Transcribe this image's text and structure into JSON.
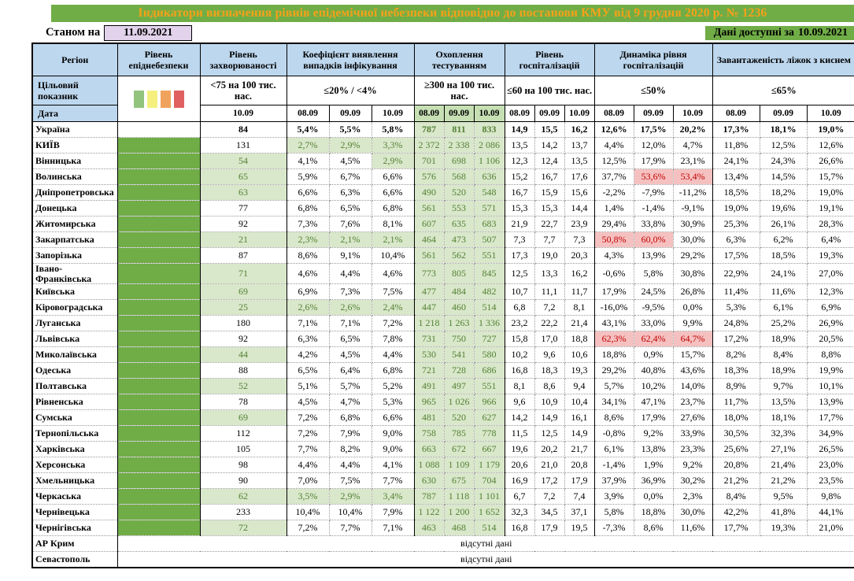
{
  "title": "Індикатори визначення рівнів епідемічної небезпеки відповідно до постанови КМУ від 9 грудня 2020 р. № 1236",
  "meta": {
    "as_of_label": "Станом на",
    "as_of_date": "11.09.2021",
    "available_label": "Дані доступні за",
    "available_date": "10.09.2021"
  },
  "colors": {
    "title_text_orange": "#f6a118",
    "highlight_green": "#70ad47",
    "header_blue": "#bdd7ee",
    "danger_column_green": "#70ad47",
    "light_green_cell": "#d9e7ca",
    "green_text": "#538135",
    "red_cell": "#f5c1c0",
    "red_text": "#c00000",
    "date_box_lavender": "#e2d2eb",
    "legend": [
      "#93c47d",
      "#f5f07e",
      "#f0a35c",
      "#e06061"
    ]
  },
  "table": {
    "region_header": "Регіон",
    "target_label": "Цільовий показник",
    "date_label": "Дата",
    "groups": [
      {
        "label": "Рівень епіднебезпеки"
      },
      {
        "label": "Рівень захворюваності",
        "target": "<75 на 100 тис. нас.",
        "dates": [
          "10.09"
        ]
      },
      {
        "label": "Коефіцієнт виявлення випадків інфікування",
        "target": "≤20% / <4%",
        "dates": [
          "08.09",
          "09.09",
          "10.09"
        ]
      },
      {
        "label": "Охоплення тестуванням",
        "target": "≥300 на 100 тис. нас.",
        "dates": [
          "08.09",
          "09.09",
          "10.09"
        ]
      },
      {
        "label": "Рівень госпіталізацій",
        "target": "≤60 на 100 тис. нас.",
        "dates": [
          "08.09",
          "09.09",
          "10.09"
        ]
      },
      {
        "label": "Динаміка рівня госпіталізацій",
        "target": "≤50%",
        "dates": [
          "08.09",
          "09.09",
          "10.09"
        ]
      },
      {
        "label": "Завантаженість ліжок з киснем",
        "target": "≤65%",
        "dates": [
          "08.09",
          "09.09",
          "10.09"
        ]
      }
    ],
    "no_data_text": "відсутні дані",
    "no_data_rows": [
      "АР Крим",
      "Севастополь"
    ],
    "rows": [
      {
        "name": "Україна",
        "bold": true,
        "danger": false,
        "inc": "84",
        "inc_g": false,
        "coef": [
          "5,4%",
          "5,5%",
          "5,8%"
        ],
        "test": [
          "787",
          "811",
          "833"
        ],
        "hosp": [
          "14,9",
          "15,5",
          "16,2"
        ],
        "dyn": [
          "12,6%",
          "17,5%",
          "20,2%"
        ],
        "beds": [
          "17,3%",
          "18,1%",
          "19,0%"
        ]
      },
      {
        "name": "КИЇВ",
        "danger": true,
        "inc": "131",
        "inc_g": false,
        "coef": [
          "2,7%",
          "2,9%",
          "3,3%"
        ],
        "coef_g": [
          true,
          true,
          true
        ],
        "test": [
          "2 372",
          "2 338",
          "2 086"
        ],
        "hosp": [
          "13,5",
          "14,2",
          "13,7"
        ],
        "dyn": [
          "4,4%",
          "12,0%",
          "4,7%"
        ],
        "beds": [
          "11,8%",
          "12,5%",
          "12,6%"
        ]
      },
      {
        "name": "Вінницька",
        "danger": true,
        "inc": "54",
        "inc_g": true,
        "coef": [
          "4,1%",
          "4,5%",
          "2,9%"
        ],
        "coef_g": [
          false,
          false,
          true
        ],
        "test": [
          "701",
          "698",
          "1 106"
        ],
        "hosp": [
          "12,3",
          "12,4",
          "13,5"
        ],
        "dyn": [
          "12,5%",
          "17,9%",
          "23,1%"
        ],
        "beds": [
          "24,1%",
          "24,3%",
          "26,6%"
        ]
      },
      {
        "name": "Волинська",
        "danger": true,
        "inc": "65",
        "inc_g": true,
        "coef": [
          "5,9%",
          "6,7%",
          "6,6%"
        ],
        "test": [
          "576",
          "568",
          "636"
        ],
        "hosp": [
          "15,2",
          "16,7",
          "17,6"
        ],
        "dyn": [
          "37,7%",
          "53,6%",
          "53,4%"
        ],
        "dyn_r": [
          false,
          true,
          true
        ],
        "beds": [
          "13,4%",
          "14,5%",
          "15,7%"
        ]
      },
      {
        "name": "Дніпропетровська",
        "danger": true,
        "inc": "63",
        "inc_g": true,
        "coef": [
          "6,6%",
          "6,3%",
          "6,6%"
        ],
        "test": [
          "490",
          "520",
          "548"
        ],
        "hosp": [
          "16,7",
          "15,9",
          "15,6"
        ],
        "dyn": [
          "-2,2%",
          "-7,9%",
          "-11,2%"
        ],
        "beds": [
          "18,5%",
          "18,2%",
          "19,0%"
        ]
      },
      {
        "name": "Донецька",
        "danger": true,
        "inc": "77",
        "inc_g": false,
        "coef": [
          "6,8%",
          "6,5%",
          "6,8%"
        ],
        "test": [
          "561",
          "553",
          "571"
        ],
        "hosp": [
          "15,3",
          "15,3",
          "14,4"
        ],
        "dyn": [
          "1,4%",
          "-1,4%",
          "-9,1%"
        ],
        "beds": [
          "19,0%",
          "19,6%",
          "19,1%"
        ]
      },
      {
        "name": "Житомирська",
        "danger": true,
        "inc": "92",
        "inc_g": false,
        "coef": [
          "7,3%",
          "7,6%",
          "8,1%"
        ],
        "test": [
          "607",
          "635",
          "683"
        ],
        "hosp": [
          "21,9",
          "22,7",
          "23,9"
        ],
        "dyn": [
          "29,4%",
          "33,8%",
          "30,9%"
        ],
        "beds": [
          "25,3%",
          "26,1%",
          "28,3%"
        ]
      },
      {
        "name": "Закарпатська",
        "danger": true,
        "inc": "21",
        "inc_g": true,
        "coef": [
          "2,3%",
          "2,1%",
          "2,1%"
        ],
        "coef_g": [
          true,
          true,
          true
        ],
        "test": [
          "464",
          "473",
          "507"
        ],
        "hosp": [
          "7,3",
          "7,7",
          "7,3"
        ],
        "dyn": [
          "50,8%",
          "60,0%",
          "30,0%"
        ],
        "dyn_r": [
          true,
          true,
          false
        ],
        "beds": [
          "6,3%",
          "6,2%",
          "6,4%"
        ]
      },
      {
        "name": "Запорізька",
        "danger": true,
        "inc": "87",
        "inc_g": false,
        "coef": [
          "8,6%",
          "9,1%",
          "10,4%"
        ],
        "test": [
          "561",
          "562",
          "551"
        ],
        "hosp": [
          "17,3",
          "19,0",
          "20,3"
        ],
        "dyn": [
          "4,3%",
          "13,9%",
          "29,2%"
        ],
        "beds": [
          "17,5%",
          "18,5%",
          "19,3%"
        ]
      },
      {
        "name": "Івано-Франківська",
        "danger": true,
        "inc": "71",
        "inc_g": true,
        "coef": [
          "4,6%",
          "4,4%",
          "4,6%"
        ],
        "test": [
          "773",
          "805",
          "845"
        ],
        "hosp": [
          "12,5",
          "13,3",
          "16,2"
        ],
        "dyn": [
          "-0,6%",
          "5,8%",
          "30,8%"
        ],
        "beds": [
          "22,9%",
          "24,1%",
          "27,0%"
        ]
      },
      {
        "name": "Київська",
        "danger": true,
        "inc": "69",
        "inc_g": true,
        "coef": [
          "6,9%",
          "7,3%",
          "7,5%"
        ],
        "test": [
          "477",
          "484",
          "482"
        ],
        "hosp": [
          "10,7",
          "11,1",
          "11,7"
        ],
        "dyn": [
          "17,9%",
          "24,5%",
          "26,8%"
        ],
        "beds": [
          "11,4%",
          "11,6%",
          "12,3%"
        ]
      },
      {
        "name": "Кіровоградська",
        "danger": true,
        "inc": "25",
        "inc_g": true,
        "coef": [
          "2,6%",
          "2,6%",
          "2,4%"
        ],
        "coef_g": [
          true,
          true,
          true
        ],
        "test": [
          "447",
          "460",
          "514"
        ],
        "hosp": [
          "6,8",
          "7,2",
          "8,1"
        ],
        "dyn": [
          "-16,0%",
          "-9,5%",
          "0,0%"
        ],
        "beds": [
          "5,3%",
          "6,1%",
          "6,9%"
        ]
      },
      {
        "name": "Луганська",
        "danger": true,
        "inc": "180",
        "inc_g": false,
        "coef": [
          "7,1%",
          "7,1%",
          "7,2%"
        ],
        "test": [
          "1 218",
          "1 263",
          "1 336"
        ],
        "hosp": [
          "23,2",
          "22,2",
          "21,4"
        ],
        "dyn": [
          "43,1%",
          "33,0%",
          "9,9%"
        ],
        "beds": [
          "24,8%",
          "25,2%",
          "26,9%"
        ]
      },
      {
        "name": "Львівська",
        "danger": true,
        "inc": "92",
        "inc_g": false,
        "coef": [
          "6,3%",
          "6,5%",
          "7,8%"
        ],
        "test": [
          "731",
          "750",
          "727"
        ],
        "hosp": [
          "15,8",
          "17,0",
          "18,8"
        ],
        "dyn": [
          "62,3%",
          "62,4%",
          "64,7%"
        ],
        "dyn_r": [
          true,
          true,
          true
        ],
        "beds": [
          "17,2%",
          "18,9%",
          "20,5%"
        ]
      },
      {
        "name": "Миколаївська",
        "danger": true,
        "inc": "44",
        "inc_g": true,
        "coef": [
          "4,2%",
          "4,5%",
          "4,4%"
        ],
        "test": [
          "530",
          "541",
          "580"
        ],
        "hosp": [
          "10,2",
          "9,6",
          "10,6"
        ],
        "dyn": [
          "18,8%",
          "0,9%",
          "15,7%"
        ],
        "beds": [
          "8,2%",
          "8,4%",
          "8,8%"
        ]
      },
      {
        "name": "Одеська",
        "danger": true,
        "inc": "88",
        "inc_g": false,
        "coef": [
          "6,5%",
          "6,4%",
          "6,8%"
        ],
        "test": [
          "721",
          "728",
          "686"
        ],
        "hosp": [
          "16,8",
          "18,3",
          "19,3"
        ],
        "dyn": [
          "29,2%",
          "40,8%",
          "43,6%"
        ],
        "beds": [
          "18,3%",
          "18,9%",
          "19,9%"
        ]
      },
      {
        "name": "Полтавська",
        "danger": true,
        "inc": "52",
        "inc_g": true,
        "coef": [
          "5,1%",
          "5,7%",
          "5,2%"
        ],
        "test": [
          "491",
          "497",
          "551"
        ],
        "hosp": [
          "8,1",
          "8,6",
          "9,4"
        ],
        "dyn": [
          "5,7%",
          "10,2%",
          "14,0%"
        ],
        "beds": [
          "8,9%",
          "9,7%",
          "10,1%"
        ]
      },
      {
        "name": "Рівненська",
        "danger": true,
        "inc": "78",
        "inc_g": false,
        "coef": [
          "4,5%",
          "4,7%",
          "5,3%"
        ],
        "test": [
          "965",
          "1 026",
          "966"
        ],
        "hosp": [
          "9,6",
          "10,9",
          "10,4"
        ],
        "dyn": [
          "34,1%",
          "47,1%",
          "23,7%"
        ],
        "beds": [
          "11,7%",
          "13,5%",
          "13,9%"
        ]
      },
      {
        "name": "Сумська",
        "danger": true,
        "inc": "69",
        "inc_g": true,
        "coef": [
          "7,2%",
          "6,8%",
          "6,6%"
        ],
        "test": [
          "481",
          "520",
          "627"
        ],
        "hosp": [
          "14,2",
          "14,9",
          "16,1"
        ],
        "dyn": [
          "8,6%",
          "17,9%",
          "27,6%"
        ],
        "beds": [
          "18,0%",
          "18,1%",
          "17,7%"
        ]
      },
      {
        "name": "Тернопільська",
        "danger": true,
        "inc": "112",
        "inc_g": false,
        "coef": [
          "7,2%",
          "7,9%",
          "9,0%"
        ],
        "test": [
          "758",
          "785",
          "778"
        ],
        "hosp": [
          "11,5",
          "12,5",
          "14,9"
        ],
        "dyn": [
          "-0,8%",
          "9,2%",
          "33,9%"
        ],
        "beds": [
          "30,5%",
          "32,3%",
          "34,9%"
        ]
      },
      {
        "name": "Харківська",
        "danger": true,
        "inc": "105",
        "inc_g": false,
        "coef": [
          "7,7%",
          "8,2%",
          "9,0%"
        ],
        "test": [
          "663",
          "672",
          "667"
        ],
        "hosp": [
          "19,6",
          "20,2",
          "21,7"
        ],
        "dyn": [
          "6,1%",
          "13,8%",
          "23,3%"
        ],
        "beds": [
          "25,6%",
          "27,1%",
          "26,5%"
        ]
      },
      {
        "name": "Херсонська",
        "danger": true,
        "inc": "98",
        "inc_g": false,
        "coef": [
          "4,4%",
          "4,4%",
          "4,1%"
        ],
        "test": [
          "1 088",
          "1 109",
          "1 179"
        ],
        "hosp": [
          "20,6",
          "21,0",
          "20,8"
        ],
        "dyn": [
          "-1,4%",
          "1,9%",
          "9,2%"
        ],
        "beds": [
          "20,8%",
          "21,4%",
          "23,0%"
        ]
      },
      {
        "name": "Хмельницька",
        "danger": true,
        "inc": "90",
        "inc_g": false,
        "coef": [
          "7,0%",
          "7,5%",
          "7,7%"
        ],
        "test": [
          "630",
          "675",
          "704"
        ],
        "hosp": [
          "16,9",
          "17,2",
          "17,9"
        ],
        "dyn": [
          "37,9%",
          "36,9%",
          "30,2%"
        ],
        "beds": [
          "21,2%",
          "21,2%",
          "23,5%"
        ]
      },
      {
        "name": "Черкаська",
        "danger": true,
        "inc": "62",
        "inc_g": true,
        "coef": [
          "3,5%",
          "2,9%",
          "3,4%"
        ],
        "coef_g": [
          true,
          true,
          true
        ],
        "test": [
          "787",
          "1 118",
          "1 101"
        ],
        "hosp": [
          "6,7",
          "7,2",
          "7,4"
        ],
        "dyn": [
          "3,9%",
          "0,0%",
          "2,3%"
        ],
        "beds": [
          "8,4%",
          "9,5%",
          "9,8%"
        ]
      },
      {
        "name": "Чернівецька",
        "danger": true,
        "inc": "233",
        "inc_g": false,
        "coef": [
          "10,4%",
          "10,4%",
          "7,9%"
        ],
        "test": [
          "1 122",
          "1 200",
          "1 652"
        ],
        "hosp": [
          "32,3",
          "34,5",
          "37,1"
        ],
        "dyn": [
          "5,8%",
          "18,8%",
          "30,0%"
        ],
        "beds": [
          "42,2%",
          "41,8%",
          "44,1%"
        ]
      },
      {
        "name": "Чернігівська",
        "danger": true,
        "inc": "72",
        "inc_g": true,
        "coef": [
          "7,2%",
          "7,7%",
          "7,1%"
        ],
        "test": [
          "463",
          "468",
          "514"
        ],
        "hosp": [
          "16,8",
          "17,9",
          "19,5"
        ],
        "dyn": [
          "-7,3%",
          "8,6%",
          "11,6%"
        ],
        "beds": [
          "17,7%",
          "19,3%",
          "21,0%"
        ]
      }
    ]
  }
}
